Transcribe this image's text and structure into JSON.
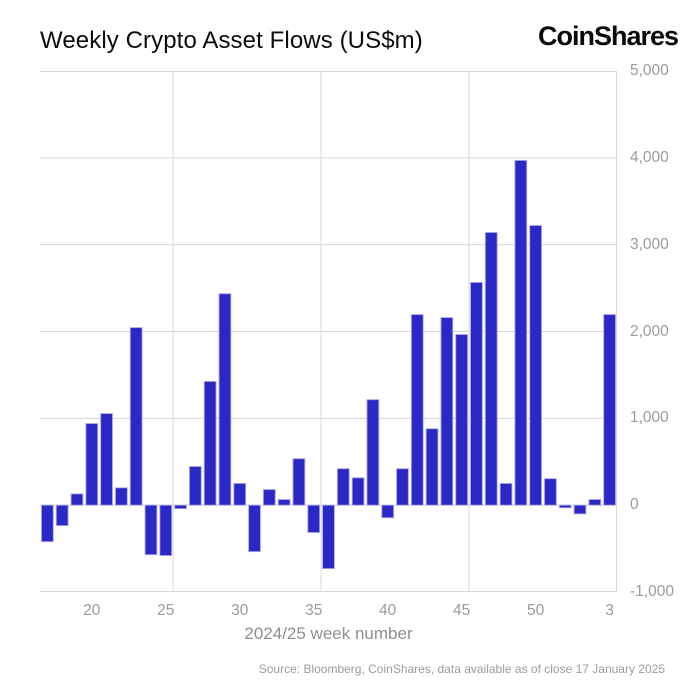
{
  "header": {
    "title": "Weekly Crypto Asset Flows (US$m)",
    "logo": "CoinShares"
  },
  "chart_data": {
    "type": "bar",
    "title": "Weekly Crypto Asset Flows (US$m)",
    "xlabel": "2024/25 week number",
    "ylabel": "",
    "ylim": [
      -1000,
      5000
    ],
    "grid": true,
    "legend": "none",
    "y_ticks": [
      5000,
      4000,
      3000,
      2000,
      1000,
      0,
      -1000
    ],
    "y_tick_labels": [
      "5,000",
      "4,000",
      "3,000",
      "2,000",
      "1,000",
      "0",
      "-1,000"
    ],
    "categories": [
      "17",
      "18",
      "19",
      "20",
      "21",
      "22",
      "23",
      "24",
      "25",
      "26",
      "27",
      "28",
      "29",
      "30",
      "31",
      "32",
      "33",
      "34",
      "35",
      "36",
      "37",
      "38",
      "39",
      "40",
      "41",
      "42",
      "43",
      "44",
      "45",
      "46",
      "47",
      "48",
      "49",
      "50",
      "51",
      "52",
      "1",
      "2",
      "3"
    ],
    "values": [
      -420,
      -235,
      130,
      940,
      1055,
      200,
      2045,
      -570,
      -580,
      -40,
      445,
      1425,
      2435,
      250,
      -535,
      180,
      65,
      535,
      -315,
      -730,
      420,
      315,
      1215,
      -145,
      420,
      2195,
      880,
      2160,
      1965,
      2565,
      3140,
      250,
      3970,
      3220,
      305,
      -30,
      -100,
      65,
      2195
    ],
    "x_tick_labels": [
      "20",
      "25",
      "30",
      "35",
      "40",
      "45",
      "50",
      "3"
    ],
    "x_tick_indices": [
      3,
      8,
      13,
      18,
      23,
      28,
      33,
      38
    ],
    "vgrid_after_indices": [
      8,
      18,
      28
    ],
    "colors": {
      "bar_fill": "#2b28c6",
      "bar_edge": "#a9a5e8",
      "grid": "#d7d7d7",
      "tick_text": "#9b9b9b",
      "title_text": "#0c0c0c"
    }
  },
  "footer": {
    "source": "Source: Bloomberg, CoinShares, data available as of close 17 January 2025"
  }
}
